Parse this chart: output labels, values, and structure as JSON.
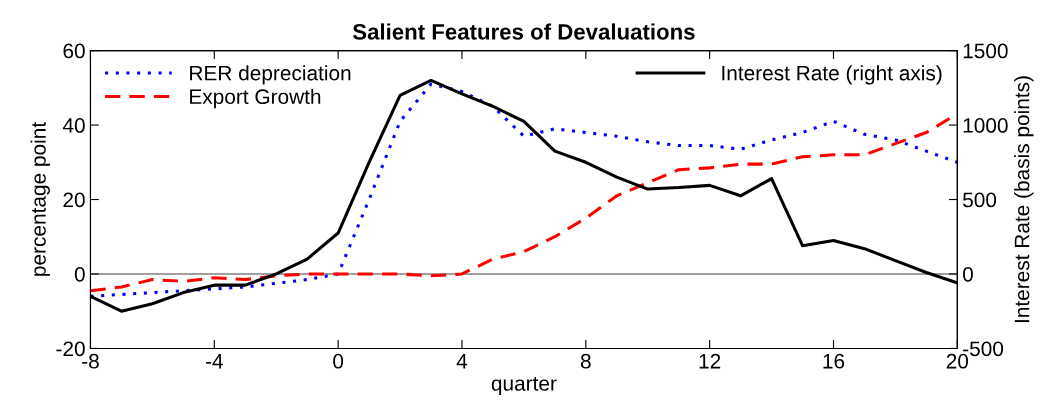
{
  "chart_data": {
    "type": "line",
    "title": "Salient Features of Devaluations",
    "xlabel": "quarter",
    "ylabel": "percentage point",
    "y2label": "Interest Rate (basis points)",
    "x": [
      -8,
      -7,
      -6,
      -5,
      -4,
      -3,
      -2,
      -1,
      0,
      1,
      2,
      3,
      4,
      5,
      6,
      7,
      8,
      9,
      10,
      11,
      12,
      13,
      14,
      15,
      16,
      17,
      18,
      19,
      20
    ],
    "series": [
      {
        "name": "RER depreciation",
        "color": "#0000ff",
        "line_style": "dotted",
        "values": [
          -6,
          -5.5,
          -5,
          -4.5,
          -4,
          -3.5,
          -2.5,
          -1.5,
          0,
          20,
          41,
          51,
          49,
          45,
          37,
          39,
          38,
          37,
          35.5,
          34.5,
          34.5,
          33.5,
          36,
          38,
          41,
          37.5,
          36,
          33,
          30
        ]
      },
      {
        "name": "Export Growth",
        "color": "#ff0000",
        "line_style": "dashed",
        "values": [
          -4.5,
          -3.5,
          -1.5,
          -2,
          -1,
          -1.5,
          -0.5,
          0,
          0,
          0,
          0,
          -0.5,
          0,
          4,
          6,
          10,
          15,
          21,
          24.5,
          28,
          28.5,
          29.5,
          29.5,
          31.5,
          32,
          32,
          35,
          38,
          43
        ]
      },
      {
        "name": "Interest Rate (right axis)",
        "color": "#000000",
        "line_style": "solid",
        "axis": "y2",
        "values": [
          -150,
          -250,
          -200,
          -125,
          -75,
          -75,
          0,
          100,
          275,
          750,
          1200,
          1300,
          1210,
          1125,
          1025,
          825,
          750,
          650,
          570,
          580,
          595,
          525,
          640,
          190,
          225,
          170,
          90,
          10,
          -60
        ]
      }
    ],
    "xlim": [
      -8,
      20
    ],
    "xticks": [
      -8,
      -4,
      0,
      4,
      8,
      12,
      16,
      20
    ],
    "ylim": [
      -20,
      60
    ],
    "yticks": [
      -20,
      0,
      20,
      40,
      60
    ],
    "y2lim": [
      -500,
      1500
    ],
    "y2ticks": [
      -500,
      0,
      500,
      1000,
      1500
    ],
    "ref_lines": [
      {
        "axis": "y",
        "value": 0,
        "color": "#808080"
      }
    ],
    "grid": false,
    "legend": "top",
    "marker": "none"
  }
}
